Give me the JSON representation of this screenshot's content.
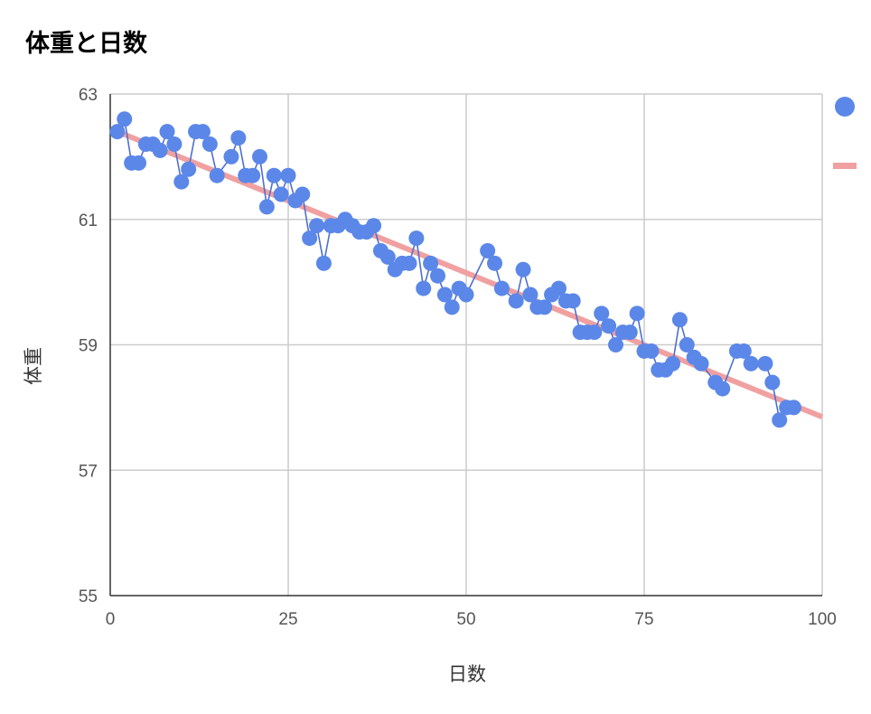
{
  "chart_data": {
    "type": "scatter",
    "title": "体重と日数",
    "xlabel": "日数",
    "ylabel": "体重",
    "xlim": [
      0,
      100
    ],
    "ylim": [
      55,
      63
    ],
    "x_ticks": [
      "0",
      "25",
      "50",
      "75",
      "100"
    ],
    "y_ticks": [
      "55",
      "57",
      "59",
      "61",
      "63"
    ],
    "grid": true,
    "legend": "right (clipped)",
    "series": [
      {
        "marker_color": "#5b87e8",
        "line_color": "#4f6fd0",
        "points": [
          [
            1,
            62.4
          ],
          [
            2,
            62.6
          ],
          [
            3,
            61.9
          ],
          [
            4,
            61.9
          ],
          [
            5,
            62.2
          ],
          [
            6,
            62.2
          ],
          [
            7,
            62.1
          ],
          [
            8,
            62.4
          ],
          [
            9,
            62.2
          ],
          [
            10,
            61.6
          ],
          [
            11,
            61.8
          ],
          [
            12,
            62.4
          ],
          [
            13,
            62.4
          ],
          [
            14,
            62.2
          ],
          [
            15,
            61.7
          ],
          [
            17,
            62.0
          ],
          [
            18,
            62.3
          ],
          [
            19,
            61.7
          ],
          [
            20,
            61.7
          ],
          [
            21,
            62.0
          ],
          [
            22,
            61.2
          ],
          [
            23,
            61.7
          ],
          [
            24,
            61.4
          ],
          [
            25,
            61.7
          ],
          [
            26,
            61.3
          ],
          [
            27,
            61.4
          ],
          [
            28,
            60.7
          ],
          [
            29,
            60.9
          ],
          [
            30,
            60.3
          ],
          [
            31,
            60.9
          ],
          [
            32,
            60.9
          ],
          [
            33,
            61.0
          ],
          [
            34,
            60.9
          ],
          [
            35,
            60.8
          ],
          [
            36,
            60.8
          ],
          [
            37,
            60.9
          ],
          [
            38,
            60.5
          ],
          [
            39,
            60.4
          ],
          [
            40,
            60.2
          ],
          [
            41,
            60.3
          ],
          [
            42,
            60.3
          ],
          [
            43,
            60.7
          ],
          [
            44,
            59.9
          ],
          [
            45,
            60.3
          ],
          [
            46,
            60.1
          ],
          [
            47,
            59.8
          ],
          [
            48,
            59.6
          ],
          [
            49,
            59.9
          ],
          [
            50,
            59.8
          ],
          [
            53,
            60.5
          ],
          [
            54,
            60.3
          ],
          [
            55,
            59.9
          ],
          [
            57,
            59.7
          ],
          [
            58,
            60.2
          ],
          [
            59,
            59.8
          ],
          [
            60,
            59.6
          ],
          [
            61,
            59.6
          ],
          [
            62,
            59.8
          ],
          [
            63,
            59.9
          ],
          [
            64,
            59.7
          ],
          [
            65,
            59.7
          ],
          [
            66,
            59.2
          ],
          [
            67,
            59.2
          ],
          [
            68,
            59.2
          ],
          [
            69,
            59.5
          ],
          [
            70,
            59.3
          ],
          [
            71,
            59.0
          ],
          [
            72,
            59.2
          ],
          [
            73,
            59.2
          ],
          [
            74,
            59.5
          ],
          [
            75,
            58.9
          ],
          [
            76,
            58.9
          ],
          [
            77,
            58.6
          ],
          [
            78,
            58.6
          ],
          [
            79,
            58.7
          ],
          [
            80,
            59.4
          ],
          [
            81,
            59.0
          ],
          [
            82,
            58.8
          ],
          [
            83,
            58.7
          ],
          [
            85,
            58.4
          ],
          [
            86,
            58.3
          ],
          [
            88,
            58.9
          ],
          [
            89,
            58.9
          ],
          [
            90,
            58.7
          ],
          [
            92,
            58.7
          ],
          [
            93,
            58.4
          ],
          [
            94,
            57.8
          ],
          [
            95,
            58.0
          ],
          [
            96,
            58.0
          ]
        ]
      },
      {
        "type": "trendline",
        "line_color": "#f0a0a0",
        "points": [
          [
            1,
            62.4
          ],
          [
            100,
            57.85
          ]
        ]
      }
    ]
  }
}
